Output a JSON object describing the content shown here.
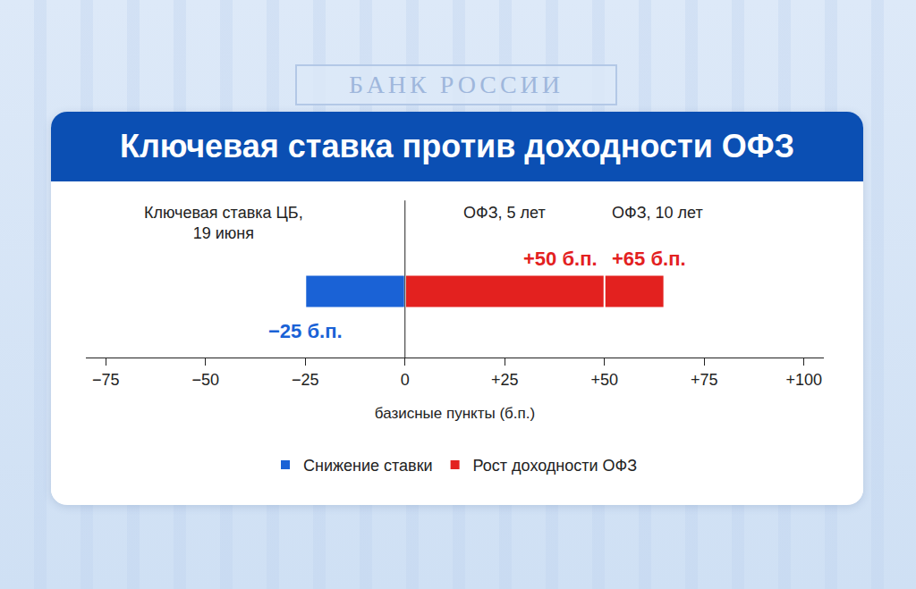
{
  "background": {
    "sign": "БАНК РОССИИ"
  },
  "chart_data": {
    "type": "bar",
    "title": "Ключевая ставка против доходности ОФЗ",
    "x_label": "базисные пункты (б.п.)",
    "orientation": "horizontal",
    "stacked": false,
    "data_labels": true,
    "tick_labels": "x",
    "grid": false,
    "legend": "bottom",
    "categories": [
      "Ключевая ставка ЦБ, 19 июня",
      "ОФЗ, 5 лет",
      "ОФЗ, 10 лет"
    ],
    "series": [
      {
        "name": "Снижение ставки",
        "color": "#1a62d6",
        "values": [
          -25,
          null,
          null
        ],
        "value_labels": [
          "−25 б.п.",
          null,
          null
        ]
      },
      {
        "name": "Рост доходности ОФЗ",
        "color": "#e3211f",
        "values": [
          null,
          50,
          65
        ],
        "value_labels": [
          null,
          "+50 б.п.",
          "+65 б.п."
        ]
      }
    ],
    "xlim": [
      -80,
      105
    ],
    "xticks": [
      {
        "value": -75,
        "label": "−75"
      },
      {
        "value": -50,
        "label": "−50"
      },
      {
        "value": -25,
        "label": "−25"
      },
      0,
      {
        "value": 25,
        "label": "+25"
      },
      {
        "value": 50,
        "label": "+50"
      },
      {
        "value": 75,
        "label": "+75"
      },
      {
        "value": 100,
        "label": "+100"
      }
    ]
  }
}
